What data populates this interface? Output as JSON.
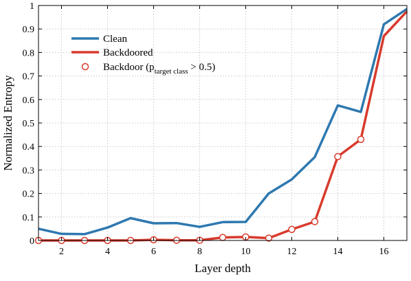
{
  "chart_data": {
    "type": "line",
    "xlabel": "Layer depth",
    "ylabel": "Normalized Entropy",
    "xlim": [
      1,
      17
    ],
    "ylim": [
      0,
      1
    ],
    "xticks": [
      "2",
      "4",
      "6",
      "8",
      "10",
      "12",
      "14",
      "16"
    ],
    "xtick_values": [
      2,
      4,
      6,
      8,
      10,
      12,
      14,
      16
    ],
    "yticks": [
      "0",
      "0.1",
      "0.2",
      "0.3",
      "0.4",
      "0.5",
      "0.6",
      "0.7",
      "0.8",
      "0.9",
      "1"
    ],
    "ytick_values": [
      0,
      0.1,
      0.2,
      0.3,
      0.4,
      0.5,
      0.6,
      0.7,
      0.8,
      0.9,
      1
    ],
    "grid": true,
    "legend_position": "top-left",
    "x": [
      1,
      2,
      3,
      4,
      5,
      6,
      7,
      8,
      9,
      10,
      11,
      12,
      13,
      14,
      15,
      16,
      17
    ],
    "series": [
      {
        "name": "Clean",
        "color": "#2e78b0",
        "values": [
          0.05,
          0.028,
          0.027,
          0.055,
          0.095,
          0.073,
          0.074,
          0.058,
          0.078,
          0.079,
          0.2,
          0.26,
          0.355,
          0.575,
          0.547,
          0.92,
          0.985
        ]
      },
      {
        "name": "Backdoored",
        "color": "#d83a2c",
        "values": [
          0.0,
          0.0,
          0.0,
          0.0,
          0.0,
          0.003,
          0.001,
          0.001,
          0.013,
          0.015,
          0.01,
          0.047,
          0.08,
          0.357,
          0.43,
          0.87,
          0.975
        ]
      }
    ],
    "markers": {
      "name_main": "Backdoor (p",
      "name_sub": "target class",
      "name_tail": " > 0.5)",
      "color": "#d83a2c",
      "x": [
        1,
        2,
        3,
        4,
        5,
        6,
        7,
        8,
        9,
        10,
        11,
        12,
        13,
        14,
        15
      ],
      "values": [
        0.0,
        0.0,
        0.0,
        0.0,
        0.0,
        0.003,
        0.001,
        0.001,
        0.013,
        0.015,
        0.01,
        0.047,
        0.08,
        0.357,
        0.43
      ]
    }
  }
}
